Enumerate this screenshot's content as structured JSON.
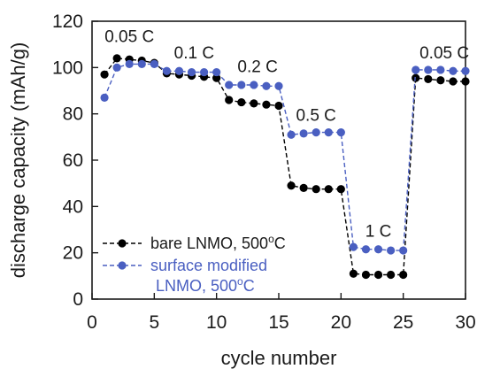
{
  "chart_data": {
    "type": "line",
    "xlabel": "cycle number",
    "ylabel": "discharge capacity (mAh/g)",
    "xlim": [
      0,
      30
    ],
    "ylim": [
      0,
      120
    ],
    "xticks": [
      0,
      5,
      10,
      15,
      20,
      25,
      30
    ],
    "yticks": [
      0,
      20,
      40,
      60,
      80,
      100,
      120
    ],
    "grid": false,
    "legend_position": "lower-left",
    "series": [
      {
        "name": "bare LNMO, 500",
        "name_sup": "o",
        "name_suffix": "C",
        "color": "#000000",
        "line_style": "dashed",
        "x": [
          1,
          2,
          3,
          4,
          5,
          6,
          7,
          8,
          9,
          10,
          11,
          12,
          13,
          14,
          15,
          16,
          17,
          18,
          19,
          20,
          21,
          22,
          23,
          24,
          25,
          26,
          27,
          28,
          29,
          30
        ],
        "y": [
          97,
          104,
          103.5,
          103,
          102,
          97.5,
          97,
          96.5,
          96,
          95.5,
          86,
          85,
          84.5,
          84,
          83.5,
          49,
          48,
          47.5,
          47.5,
          47.5,
          11,
          10.5,
          10.5,
          10.5,
          10.5,
          95.5,
          95,
          94.5,
          94,
          94
        ]
      },
      {
        "name": "surface modified",
        "name_line2": "LNMO, 500",
        "name_sup": "o",
        "name_suffix": "C",
        "color": "#4a5fc1",
        "line_style": "dashed",
        "x": [
          1,
          2,
          3,
          4,
          5,
          6,
          7,
          8,
          9,
          10,
          11,
          12,
          13,
          14,
          15,
          16,
          17,
          18,
          19,
          20,
          21,
          22,
          23,
          24,
          25,
          26,
          27,
          28,
          29,
          30
        ],
        "y": [
          87,
          100,
          101.5,
          101.5,
          101.5,
          98.5,
          98.5,
          98,
          98,
          98,
          92.5,
          92.5,
          92.5,
          92,
          92,
          71,
          71.5,
          72,
          72,
          72,
          22.5,
          21.5,
          21.5,
          21,
          21,
          99,
          99,
          99,
          98.5,
          98.5
        ]
      }
    ],
    "annotations": [
      {
        "text": "0.05 C",
        "x": 3,
        "y": 111
      },
      {
        "text": "0.1 C",
        "x": 8.2,
        "y": 104
      },
      {
        "text": "0.2 C",
        "x": 13.3,
        "y": 98
      },
      {
        "text": "0.5 C",
        "x": 18,
        "y": 77
      },
      {
        "text": "1 C",
        "x": 23,
        "y": 27
      },
      {
        "text": "0.05 C",
        "x": 28.3,
        "y": 104
      }
    ]
  }
}
